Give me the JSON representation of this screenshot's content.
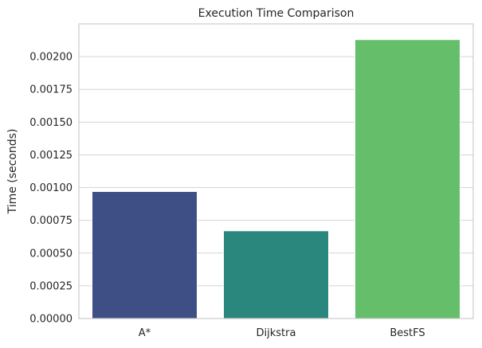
{
  "chart_data": {
    "type": "bar",
    "title": "Execution Time Comparison",
    "xlabel": "",
    "ylabel": "Time (seconds)",
    "categories": [
      "A*",
      "Dijkstra",
      "BestFS"
    ],
    "values": [
      0.00097,
      0.00067,
      0.00213
    ],
    "colors": [
      "#3e4f85",
      "#2a877d",
      "#65be6a"
    ],
    "ylim": [
      0,
      0.00225
    ],
    "yticks": [
      "0.00000",
      "0.00025",
      "0.00050",
      "0.00075",
      "0.00100",
      "0.00125",
      "0.00150",
      "0.00175",
      "0.00200"
    ],
    "grid": "horizontal",
    "legend": "none"
  }
}
